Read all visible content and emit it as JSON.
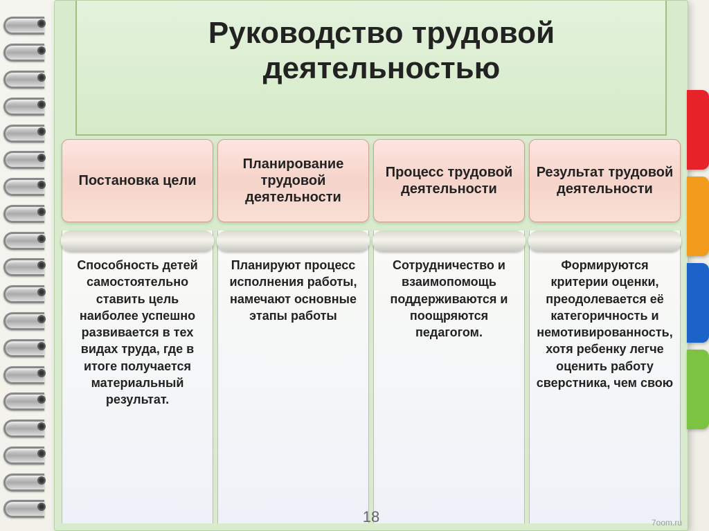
{
  "title": "Руководство трудовой деятельностью",
  "tabs": {
    "colors": [
      "#e62329",
      "#f29b1d",
      "#1b62c9",
      "#7dc342"
    ]
  },
  "columns": [
    {
      "heading": "Постановка цели",
      "body": "Способность детей самостоятельно ставить цель наиболее успешно развивается в тех видах труда, где в итоге получается материальный результат."
    },
    {
      "heading": "Планирование трудовой деятельности",
      "body": "Планируют процесс исполнения работы, намечают основные этапы работы"
    },
    {
      "heading": "Процесс трудовой деятельности",
      "body": "Сотрудничество и взаимопомощь поддерживаются и поощряются педагогом."
    },
    {
      "heading": "Результат трудовой деятельности",
      "body": "Формируются критерии оценки, преодолевается её категоричность и немотивированность, хотя ребенку легче оценить работу сверстника, чем свою"
    }
  ],
  "pageNumber": "18",
  "watermark": "7oom.ru",
  "style": {
    "heading_bg_gradient": [
      "#fde6e0",
      "#f5d4ca",
      "#f8e0d5"
    ],
    "heading_border": "#d0a090",
    "heading_fontsize": 20,
    "title_fontsize": 44,
    "body_fontsize": 18,
    "page_bg": "#d8eccd",
    "scroll_bg": [
      "#fafaf6",
      "#eef2f8"
    ],
    "ring_count": 19
  }
}
